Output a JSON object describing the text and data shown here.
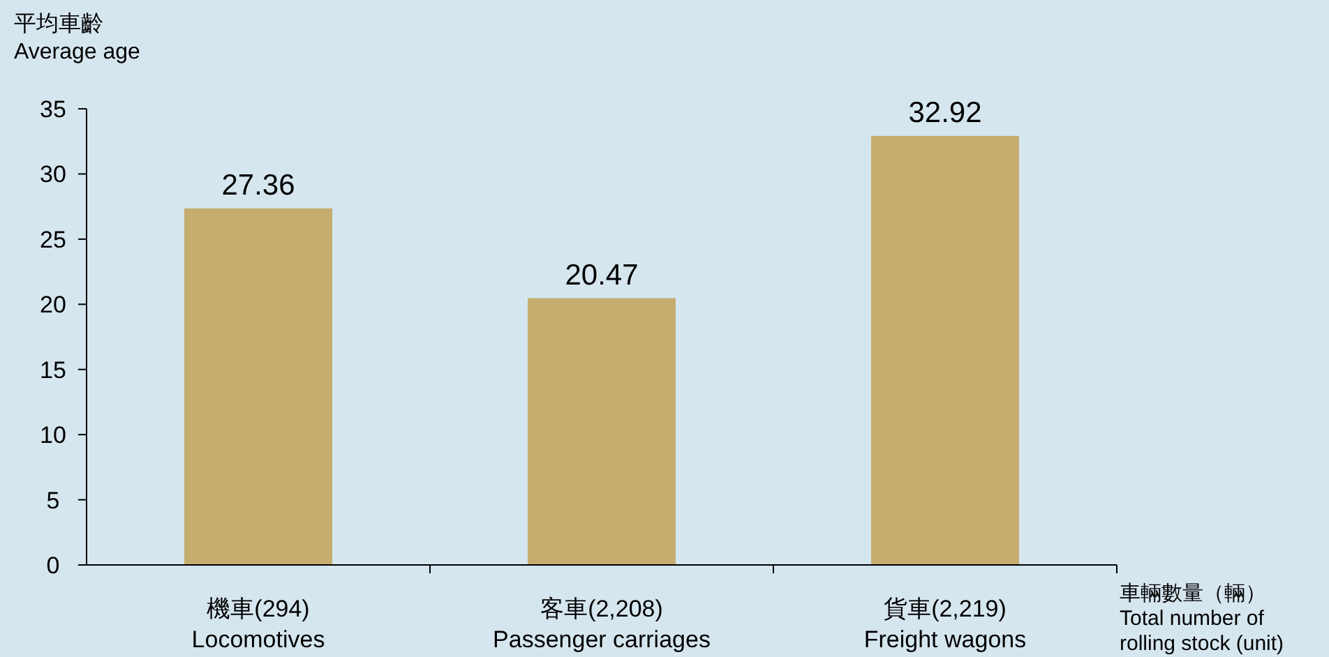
{
  "chart_data": {
    "type": "bar",
    "ylabel": "平均車齡\nAverage age",
    "xlabel": "車輛數量（輛）\nTotal number of\nrolling stock (unit)",
    "categories": [
      "機車(294)\nLocomotives",
      "客車(2,208)\nPassenger carriages",
      "貨車(2,219)\nFreight wagons"
    ],
    "values": [
      27.36,
      20.47,
      32.92
    ],
    "color": "#c4ad6f",
    "data_labels": true,
    "ylim": [
      0,
      35
    ],
    "yticks": [
      0,
      5,
      10,
      15,
      20,
      25,
      30,
      35
    ]
  }
}
